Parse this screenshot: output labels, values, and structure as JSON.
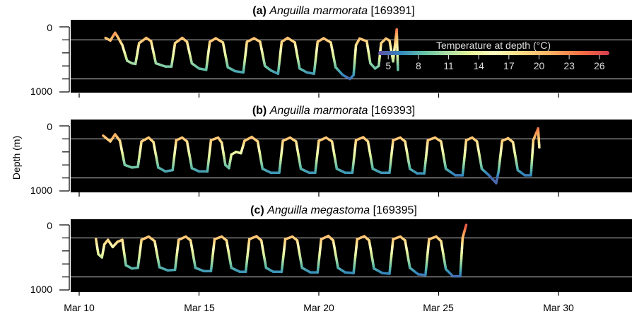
{
  "chart_data": {
    "type": "line",
    "ylabel": "Depth (m)",
    "y_axis": {
      "ylim": [
        0,
        1000
      ],
      "inverted": true,
      "tick_labels": [
        "0",
        "1000"
      ],
      "reference_lines": [
        200,
        800
      ]
    },
    "x_axis": {
      "xlim": [
        "2023-03-10",
        "2023-04-02"
      ],
      "tick_labels": [
        "Mar 10",
        "Mar 15",
        "Mar 20",
        "Mar 25",
        "Mar 30"
      ]
    },
    "colorbar": {
      "label": "Temperature at depth (°C)",
      "min": 4,
      "max": 27,
      "ticks": [
        "5",
        "8",
        "11",
        "14",
        "17",
        "20",
        "23",
        "26"
      ],
      "cmap": "Spectral_r"
    },
    "background": "#000000",
    "panels": [
      {
        "tag": "(a)",
        "species": "Anguilla marmorata",
        "id": "[169391]",
        "series": [
          {
            "x": 11.1,
            "y": 170
          },
          {
            "x": 11.3,
            "y": 210
          },
          {
            "x": 11.5,
            "y": 90
          },
          {
            "x": 11.6,
            "y": 150
          },
          {
            "x": 11.8,
            "y": 280
          },
          {
            "x": 12.0,
            "y": 520
          },
          {
            "x": 12.2,
            "y": 560
          },
          {
            "x": 12.35,
            "y": 570
          },
          {
            "x": 12.5,
            "y": 250
          },
          {
            "x": 12.8,
            "y": 170
          },
          {
            "x": 13.0,
            "y": 220
          },
          {
            "x": 13.2,
            "y": 560
          },
          {
            "x": 13.6,
            "y": 610
          },
          {
            "x": 13.85,
            "y": 610
          },
          {
            "x": 14.0,
            "y": 250
          },
          {
            "x": 14.3,
            "y": 170
          },
          {
            "x": 14.5,
            "y": 230
          },
          {
            "x": 14.7,
            "y": 560
          },
          {
            "x": 15.0,
            "y": 640
          },
          {
            "x": 15.3,
            "y": 660
          },
          {
            "x": 15.45,
            "y": 230
          },
          {
            "x": 15.7,
            "y": 175
          },
          {
            "x": 16.0,
            "y": 240
          },
          {
            "x": 16.2,
            "y": 620
          },
          {
            "x": 16.5,
            "y": 680
          },
          {
            "x": 16.85,
            "y": 700
          },
          {
            "x": 17.0,
            "y": 230
          },
          {
            "x": 17.3,
            "y": 175
          },
          {
            "x": 17.55,
            "y": 230
          },
          {
            "x": 17.75,
            "y": 600
          },
          {
            "x": 18.0,
            "y": 670
          },
          {
            "x": 18.3,
            "y": 720
          },
          {
            "x": 18.45,
            "y": 230
          },
          {
            "x": 18.7,
            "y": 170
          },
          {
            "x": 19.0,
            "y": 240
          },
          {
            "x": 19.2,
            "y": 640
          },
          {
            "x": 19.5,
            "y": 700
          },
          {
            "x": 19.8,
            "y": 720
          },
          {
            "x": 19.95,
            "y": 230
          },
          {
            "x": 20.2,
            "y": 175
          },
          {
            "x": 20.5,
            "y": 240
          },
          {
            "x": 20.7,
            "y": 620
          },
          {
            "x": 21.0,
            "y": 740
          },
          {
            "x": 21.3,
            "y": 800
          },
          {
            "x": 21.45,
            "y": 740
          },
          {
            "x": 21.55,
            "y": 280
          },
          {
            "x": 21.7,
            "y": 180
          },
          {
            "x": 22.0,
            "y": 220
          },
          {
            "x": 22.15,
            "y": 560
          },
          {
            "x": 22.35,
            "y": 640
          },
          {
            "x": 22.5,
            "y": 600
          },
          {
            "x": 22.6,
            "y": 250
          },
          {
            "x": 22.8,
            "y": 180
          },
          {
            "x": 22.95,
            "y": 210
          },
          {
            "x": 23.1,
            "y": 530
          },
          {
            "x": 23.25,
            "y": 40
          },
          {
            "x": 23.3,
            "y": 660
          }
        ]
      },
      {
        "tag": "(b)",
        "species": "Anguilla marmorata",
        "id": "[169393]",
        "series": [
          {
            "x": 11.0,
            "y": 150
          },
          {
            "x": 11.3,
            "y": 240
          },
          {
            "x": 11.5,
            "y": 130
          },
          {
            "x": 11.7,
            "y": 230
          },
          {
            "x": 11.9,
            "y": 600
          },
          {
            "x": 12.2,
            "y": 640
          },
          {
            "x": 12.45,
            "y": 630
          },
          {
            "x": 12.6,
            "y": 240
          },
          {
            "x": 12.9,
            "y": 180
          },
          {
            "x": 13.1,
            "y": 250
          },
          {
            "x": 13.3,
            "y": 640
          },
          {
            "x": 13.6,
            "y": 700
          },
          {
            "x": 13.9,
            "y": 680
          },
          {
            "x": 14.05,
            "y": 220
          },
          {
            "x": 14.3,
            "y": 180
          },
          {
            "x": 14.5,
            "y": 240
          },
          {
            "x": 14.7,
            "y": 650
          },
          {
            "x": 15.0,
            "y": 700
          },
          {
            "x": 15.35,
            "y": 700
          },
          {
            "x": 15.5,
            "y": 220
          },
          {
            "x": 15.8,
            "y": 180
          },
          {
            "x": 15.95,
            "y": 260
          },
          {
            "x": 16.1,
            "y": 600
          },
          {
            "x": 16.25,
            "y": 650
          },
          {
            "x": 16.35,
            "y": 440
          },
          {
            "x": 16.55,
            "y": 400
          },
          {
            "x": 16.75,
            "y": 420
          },
          {
            "x": 16.9,
            "y": 230
          },
          {
            "x": 17.2,
            "y": 170
          },
          {
            "x": 17.45,
            "y": 240
          },
          {
            "x": 17.65,
            "y": 660
          },
          {
            "x": 18.0,
            "y": 720
          },
          {
            "x": 18.35,
            "y": 720
          },
          {
            "x": 18.5,
            "y": 230
          },
          {
            "x": 18.8,
            "y": 180
          },
          {
            "x": 19.05,
            "y": 240
          },
          {
            "x": 19.25,
            "y": 660
          },
          {
            "x": 19.6,
            "y": 720
          },
          {
            "x": 19.85,
            "y": 720
          },
          {
            "x": 20.0,
            "y": 230
          },
          {
            "x": 20.3,
            "y": 180
          },
          {
            "x": 20.55,
            "y": 240
          },
          {
            "x": 20.75,
            "y": 660
          },
          {
            "x": 21.1,
            "y": 720
          },
          {
            "x": 21.4,
            "y": 720
          },
          {
            "x": 21.55,
            "y": 220
          },
          {
            "x": 21.85,
            "y": 175
          },
          {
            "x": 22.05,
            "y": 240
          },
          {
            "x": 22.25,
            "y": 660
          },
          {
            "x": 22.6,
            "y": 720
          },
          {
            "x": 22.95,
            "y": 720
          },
          {
            "x": 23.1,
            "y": 220
          },
          {
            "x": 23.4,
            "y": 180
          },
          {
            "x": 23.6,
            "y": 240
          },
          {
            "x": 23.8,
            "y": 660
          },
          {
            "x": 24.1,
            "y": 730
          },
          {
            "x": 24.4,
            "y": 730
          },
          {
            "x": 24.55,
            "y": 220
          },
          {
            "x": 24.85,
            "y": 180
          },
          {
            "x": 25.1,
            "y": 240
          },
          {
            "x": 25.3,
            "y": 660
          },
          {
            "x": 25.7,
            "y": 760
          },
          {
            "x": 26.0,
            "y": 760
          },
          {
            "x": 26.15,
            "y": 220
          },
          {
            "x": 26.4,
            "y": 180
          },
          {
            "x": 26.6,
            "y": 240
          },
          {
            "x": 26.8,
            "y": 660
          },
          {
            "x": 27.1,
            "y": 760
          },
          {
            "x": 27.25,
            "y": 820
          },
          {
            "x": 27.4,
            "y": 880
          },
          {
            "x": 27.5,
            "y": 700
          },
          {
            "x": 27.65,
            "y": 230
          },
          {
            "x": 27.9,
            "y": 190
          },
          {
            "x": 28.1,
            "y": 250
          },
          {
            "x": 28.3,
            "y": 680
          },
          {
            "x": 28.6,
            "y": 760
          },
          {
            "x": 28.85,
            "y": 760
          },
          {
            "x": 28.95,
            "y": 220
          },
          {
            "x": 29.15,
            "y": 40
          },
          {
            "x": 29.2,
            "y": 330
          }
        ]
      },
      {
        "tag": "(c)",
        "species": "Anguilla megastoma",
        "id": "[169395]",
        "series": [
          {
            "x": 10.7,
            "y": 220
          },
          {
            "x": 10.8,
            "y": 450
          },
          {
            "x": 10.95,
            "y": 500
          },
          {
            "x": 11.05,
            "y": 300
          },
          {
            "x": 11.2,
            "y": 230
          },
          {
            "x": 11.4,
            "y": 340
          },
          {
            "x": 11.6,
            "y": 260
          },
          {
            "x": 11.8,
            "y": 230
          },
          {
            "x": 11.95,
            "y": 620
          },
          {
            "x": 12.2,
            "y": 670
          },
          {
            "x": 12.45,
            "y": 660
          },
          {
            "x": 12.6,
            "y": 230
          },
          {
            "x": 12.9,
            "y": 180
          },
          {
            "x": 13.15,
            "y": 250
          },
          {
            "x": 13.35,
            "y": 650
          },
          {
            "x": 13.7,
            "y": 700
          },
          {
            "x": 14.0,
            "y": 690
          },
          {
            "x": 14.15,
            "y": 230
          },
          {
            "x": 14.45,
            "y": 180
          },
          {
            "x": 14.65,
            "y": 240
          },
          {
            "x": 14.85,
            "y": 660
          },
          {
            "x": 15.2,
            "y": 710
          },
          {
            "x": 15.5,
            "y": 710
          },
          {
            "x": 15.65,
            "y": 220
          },
          {
            "x": 15.95,
            "y": 180
          },
          {
            "x": 16.15,
            "y": 240
          },
          {
            "x": 16.35,
            "y": 660
          },
          {
            "x": 16.7,
            "y": 720
          },
          {
            "x": 16.95,
            "y": 720
          },
          {
            "x": 17.1,
            "y": 220
          },
          {
            "x": 17.4,
            "y": 175
          },
          {
            "x": 17.6,
            "y": 240
          },
          {
            "x": 17.8,
            "y": 660
          },
          {
            "x": 18.1,
            "y": 720
          },
          {
            "x": 18.45,
            "y": 720
          },
          {
            "x": 18.6,
            "y": 220
          },
          {
            "x": 18.9,
            "y": 180
          },
          {
            "x": 19.1,
            "y": 240
          },
          {
            "x": 19.3,
            "y": 660
          },
          {
            "x": 19.65,
            "y": 730
          },
          {
            "x": 19.95,
            "y": 730
          },
          {
            "x": 20.1,
            "y": 220
          },
          {
            "x": 20.4,
            "y": 170
          },
          {
            "x": 20.6,
            "y": 240
          },
          {
            "x": 20.8,
            "y": 660
          },
          {
            "x": 21.1,
            "y": 730
          },
          {
            "x": 21.45,
            "y": 740
          },
          {
            "x": 21.6,
            "y": 220
          },
          {
            "x": 21.9,
            "y": 175
          },
          {
            "x": 22.1,
            "y": 240
          },
          {
            "x": 22.3,
            "y": 670
          },
          {
            "x": 22.65,
            "y": 740
          },
          {
            "x": 22.95,
            "y": 750
          },
          {
            "x": 23.1,
            "y": 220
          },
          {
            "x": 23.4,
            "y": 180
          },
          {
            "x": 23.6,
            "y": 240
          },
          {
            "x": 23.8,
            "y": 660
          },
          {
            "x": 24.15,
            "y": 760
          },
          {
            "x": 24.45,
            "y": 770
          },
          {
            "x": 24.6,
            "y": 220
          },
          {
            "x": 24.9,
            "y": 180
          },
          {
            "x": 25.1,
            "y": 250
          },
          {
            "x": 25.3,
            "y": 680
          },
          {
            "x": 25.6,
            "y": 790
          },
          {
            "x": 25.9,
            "y": 790
          },
          {
            "x": 26.0,
            "y": 200
          },
          {
            "x": 26.15,
            "y": 0
          }
        ]
      }
    ]
  }
}
